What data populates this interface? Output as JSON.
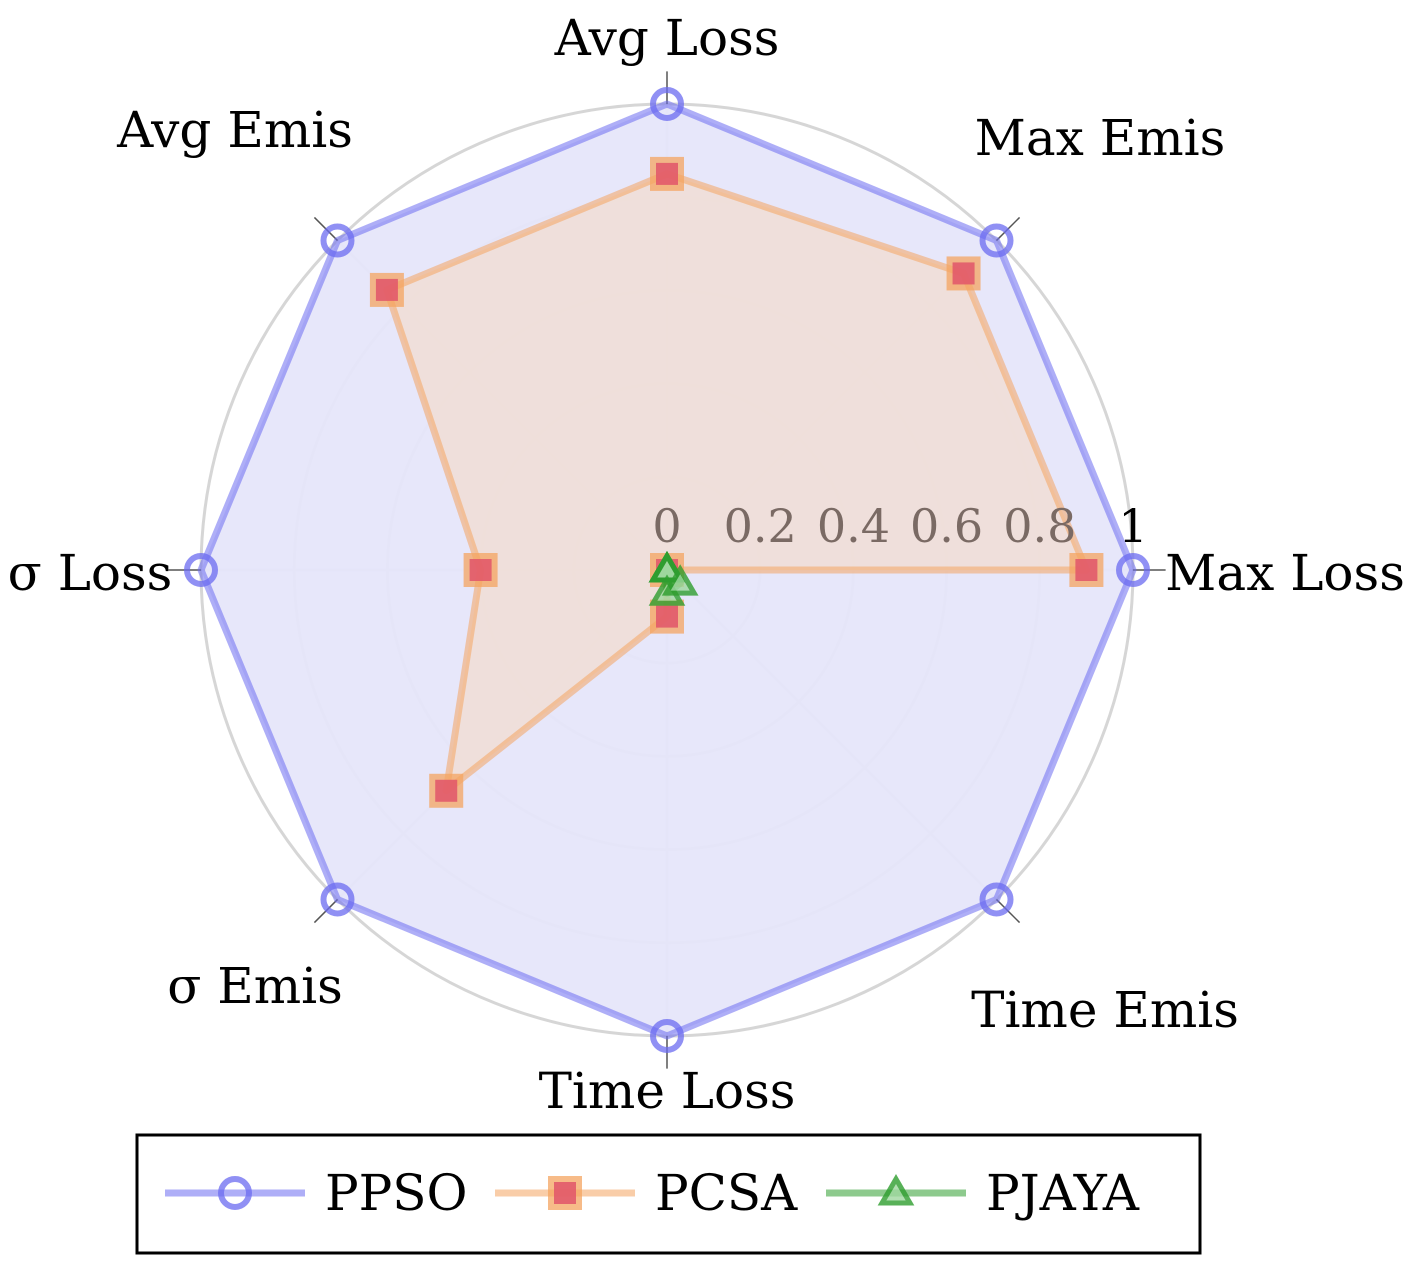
{
  "chart_data": {
    "type": "radar",
    "axes": [
      "Max Loss",
      "Max Emis",
      "Avg Loss",
      "Avg Emis",
      "σ Loss",
      "σ Emis",
      "Time Loss",
      "Time Emis"
    ],
    "radial_ticks": [
      "0",
      "0.2",
      "0.4",
      "0.6",
      "0.8",
      "1"
    ],
    "radial_range": [
      0,
      1
    ],
    "grid": true,
    "legend_position": "bottom",
    "series": [
      {
        "name": "PPSO",
        "color": "#6b6bf0",
        "fill": "#e6e6fa",
        "marker": "circle",
        "values": [
          1,
          1,
          1,
          1,
          1,
          1,
          1,
          1
        ]
      },
      {
        "name": "PCSA",
        "color": "#f4a460",
        "fill": "#f2dcd0",
        "inner": "#e0556a",
        "marker": "square",
        "values": [
          0.9,
          0.9,
          0.85,
          0.85,
          0.4,
          0.67,
          0.1,
          0.0
        ]
      },
      {
        "name": "PJAYA",
        "color": "#2f9e2f",
        "fill": "#9fd89f",
        "marker": "triangle",
        "values": [
          0.0,
          0.0,
          0.0,
          0.0,
          0.0,
          0.0,
          0.05,
          0.04
        ]
      }
    ]
  }
}
